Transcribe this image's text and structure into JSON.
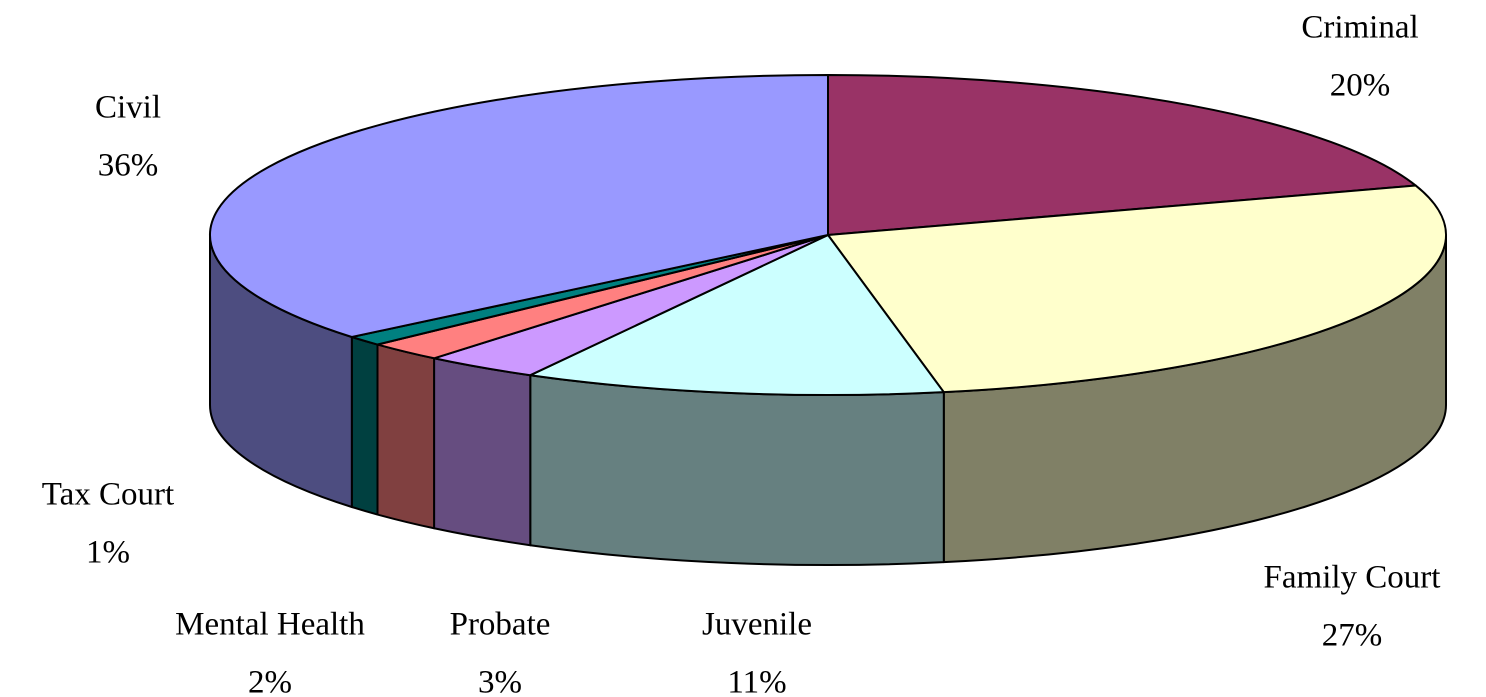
{
  "chart_data": {
    "type": "pie3d",
    "categories": [
      "Criminal",
      "Family Court",
      "Juvenile",
      "Probate",
      "Mental Health",
      "Tax Court",
      "Civil"
    ],
    "values": [
      20,
      27,
      11,
      3,
      2,
      1,
      36
    ],
    "value_labels": [
      "20%",
      "27%",
      "11%",
      "3%",
      "2%",
      "1%",
      "36%"
    ],
    "colors": [
      "#993366",
      "#ffffcc",
      "#ccffff",
      "#cc99ff",
      "#ff8080",
      "#008080",
      "#9999ff"
    ]
  }
}
